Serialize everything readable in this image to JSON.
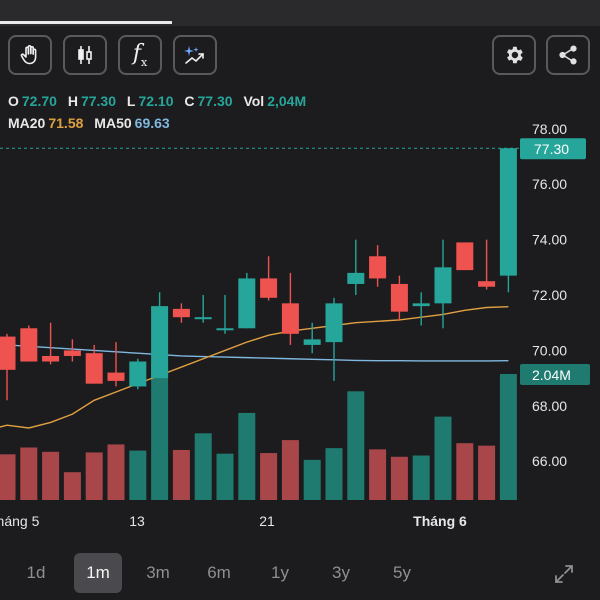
{
  "toolbar": {
    "left_icons": [
      "hand-drag-icon",
      "candlestick-icon",
      "function-icon",
      "ai-sparkle-icon"
    ],
    "function_label": "fx",
    "right_icons": [
      "gear-icon",
      "share-icon"
    ]
  },
  "ohlc": {
    "o_label": "O",
    "o_value": "72.70",
    "h_label": "H",
    "h_value": "77.30",
    "l_label": "L",
    "l_value": "72.10",
    "c_label": "C",
    "c_value": "77.30",
    "vol_label": "Vol",
    "vol_value": "2,04M"
  },
  "ma": {
    "ma20_label": "MA20",
    "ma20_value": "71.58",
    "ma50_label": "MA50",
    "ma50_value": "69.63"
  },
  "colors": {
    "up": "#26a69a",
    "down": "#ef5350",
    "ma20": "#e0a040",
    "ma50": "#7fb8e0",
    "vol_up": "#1f7a6f",
    "vol_down": "#a8464a",
    "text": "#e6e6e6"
  },
  "chart_data": {
    "type": "candlestick",
    "y_ticks": [
      "78.00",
      "76.00",
      "74.00",
      "72.00",
      "70.00",
      "68.00",
      "66.00"
    ],
    "x_labels": [
      "Tháng 5",
      "13",
      "21",
      "Tháng 6"
    ],
    "last_price": "77.30",
    "last_volume": "2.04M",
    "ylim": [
      64.6,
      78.5
    ],
    "candles": [
      {
        "o": 70.5,
        "h": 70.6,
        "l": 68.2,
        "c": 69.3
      },
      {
        "o": 70.8,
        "h": 70.9,
        "l": 69.6,
        "c": 69.6
      },
      {
        "o": 69.8,
        "h": 71.0,
        "l": 69.5,
        "c": 69.6
      },
      {
        "o": 70.0,
        "h": 70.4,
        "l": 69.6,
        "c": 69.8
      },
      {
        "o": 69.9,
        "h": 70.2,
        "l": 68.8,
        "c": 68.8
      },
      {
        "o": 69.2,
        "h": 70.3,
        "l": 68.7,
        "c": 68.9
      },
      {
        "o": 68.7,
        "h": 69.7,
        "l": 68.6,
        "c": 69.6
      },
      {
        "o": 69.0,
        "h": 72.1,
        "l": 69.0,
        "c": 71.6
      },
      {
        "o": 71.5,
        "h": 71.7,
        "l": 71.0,
        "c": 71.2
      },
      {
        "o": 71.2,
        "h": 72.0,
        "l": 71.0,
        "c": 71.2
      },
      {
        "o": 70.8,
        "h": 72.0,
        "l": 70.6,
        "c": 70.8
      },
      {
        "o": 70.8,
        "h": 72.8,
        "l": 70.8,
        "c": 72.6
      },
      {
        "o": 72.6,
        "h": 73.4,
        "l": 71.8,
        "c": 71.9
      },
      {
        "o": 71.7,
        "h": 72.8,
        "l": 70.2,
        "c": 70.6
      },
      {
        "o": 70.2,
        "h": 71.0,
        "l": 69.9,
        "c": 70.4
      },
      {
        "o": 70.3,
        "h": 71.9,
        "l": 68.9,
        "c": 71.7
      },
      {
        "o": 72.4,
        "h": 74.0,
        "l": 72.0,
        "c": 72.8
      },
      {
        "o": 73.4,
        "h": 73.8,
        "l": 72.3,
        "c": 72.6
      },
      {
        "o": 72.4,
        "h": 72.7,
        "l": 71.1,
        "c": 71.4
      },
      {
        "o": 71.6,
        "h": 72.1,
        "l": 70.9,
        "c": 71.7
      },
      {
        "o": 71.7,
        "h": 74.0,
        "l": 70.8,
        "c": 73.0
      },
      {
        "o": 73.9,
        "h": 73.9,
        "l": 72.9,
        "c": 72.9
      },
      {
        "o": 72.5,
        "h": 74.0,
        "l": 72.2,
        "c": 72.3
      },
      {
        "o": 72.7,
        "h": 77.3,
        "l": 72.1,
        "c": 77.3
      }
    ],
    "volumes": [
      0.74,
      0.85,
      0.78,
      0.45,
      0.77,
      0.9,
      0.8,
      2.21,
      0.81,
      1.08,
      0.75,
      1.41,
      0.76,
      0.97,
      0.65,
      0.84,
      1.76,
      0.82,
      0.7,
      0.72,
      1.35,
      0.92,
      0.88,
      2.04
    ],
    "ma20": [
      67.3,
      67.2,
      67.4,
      67.7,
      68.2,
      68.5,
      68.8,
      69.1,
      69.4,
      69.7,
      70.0,
      70.3,
      70.55,
      70.7,
      70.8,
      70.9,
      71.0,
      71.05,
      71.1,
      71.2,
      71.3,
      71.45,
      71.55,
      71.58
    ],
    "ma50": [
      70.2,
      70.15,
      70.1,
      70.05,
      70.0,
      69.95,
      69.9,
      69.85,
      69.8,
      69.78,
      69.76,
      69.74,
      69.72,
      69.7,
      69.68,
      69.66,
      69.64,
      69.63,
      69.63,
      69.62,
      69.62,
      69.62,
      69.62,
      69.63
    ]
  },
  "periods": [
    "1d",
    "1m",
    "3m",
    "6m",
    "1y",
    "3y",
    "5y"
  ],
  "active_period": "1m",
  "expand_icon": "expand-icon"
}
